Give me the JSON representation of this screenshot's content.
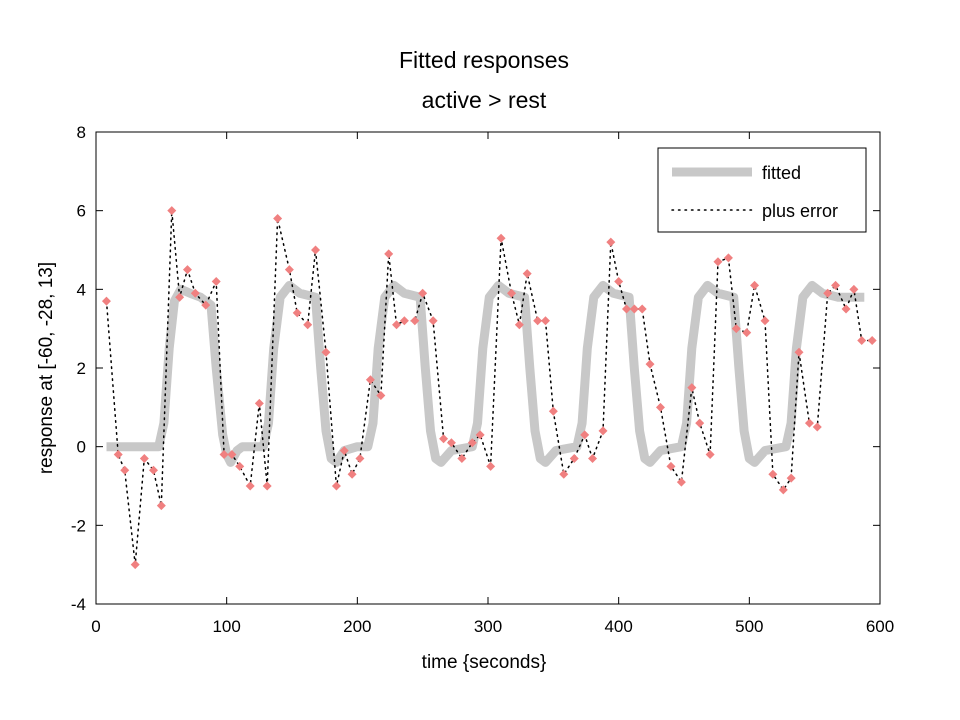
{
  "chart_data": {
    "type": "line",
    "title": "Fitted responses",
    "subtitle": "active > rest",
    "xlabel": "time {seconds}",
    "ylabel": "response at [-60, -28, 13]",
    "xlim": [
      0,
      600
    ],
    "ylim": [
      -4,
      8
    ],
    "xticks": [
      0,
      100,
      200,
      300,
      400,
      500,
      600
    ],
    "yticks": [
      -4,
      -2,
      0,
      2,
      4,
      6,
      8
    ],
    "grid": false,
    "legend_position": "top-right",
    "series": [
      {
        "name": "fitted",
        "style": "thick solid line",
        "color": "#c8c8c8",
        "x": [
          8,
          48,
          52,
          56,
          60,
          65,
          72,
          80,
          88,
          92,
          97,
          100,
          103,
          108,
          112,
          128,
          132,
          136,
          141,
          148,
          156,
          168,
          172,
          176,
          180,
          184,
          190,
          200,
          208,
          212,
          216,
          221,
          228,
          236,
          248,
          252,
          256,
          260,
          264,
          272,
          288,
          292,
          296,
          301,
          308,
          316,
          328,
          332,
          336,
          340,
          344,
          352,
          368,
          372,
          376,
          381,
          388,
          396,
          408,
          412,
          416,
          420,
          424,
          432,
          448,
          452,
          456,
          461,
          468,
          476,
          488,
          492,
          496,
          500,
          504,
          512,
          528,
          532,
          536,
          541,
          548,
          556,
          568,
          572,
          576,
          580,
          588
        ],
        "y": [
          0,
          0,
          0.6,
          2.5,
          3.7,
          4.0,
          3.9,
          3.8,
          3.6,
          2.0,
          0.3,
          -0.2,
          -0.4,
          -0.1,
          0,
          0,
          0.6,
          2.5,
          3.8,
          4.1,
          3.9,
          3.8,
          2.0,
          0.4,
          -0.3,
          -0.4,
          -0.1,
          0,
          0,
          0.6,
          2.5,
          3.8,
          4.1,
          3.9,
          3.8,
          2.0,
          0.4,
          -0.3,
          -0.4,
          -0.1,
          0,
          0.6,
          2.5,
          3.8,
          4.1,
          3.9,
          3.8,
          2.0,
          0.4,
          -0.3,
          -0.4,
          -0.1,
          0,
          0.6,
          2.5,
          3.8,
          4.1,
          3.9,
          3.8,
          2.0,
          0.4,
          -0.3,
          -0.4,
          -0.1,
          0,
          0.6,
          2.5,
          3.8,
          4.1,
          3.9,
          3.8,
          2.0,
          0.4,
          -0.3,
          -0.4,
          -0.1,
          0,
          0.6,
          2.5,
          3.8,
          4.1,
          3.9,
          3.8,
          3.8,
          3.8,
          3.8,
          3.8
        ]
      },
      {
        "name": "plus error",
        "style": "dotted line with markers",
        "color": "#000000",
        "marker_color": "#f08080",
        "x": [
          8,
          17,
          22,
          30,
          37,
          44,
          50,
          58,
          64,
          70,
          76,
          84,
          92,
          98,
          104,
          110,
          118,
          125,
          131,
          139,
          148,
          154,
          162,
          168,
          176,
          184,
          190,
          196,
          202,
          210,
          218,
          224,
          230,
          236,
          244,
          250,
          258,
          266,
          272,
          280,
          288,
          294,
          302,
          310,
          318,
          324,
          330,
          338,
          344,
          350,
          358,
          366,
          374,
          380,
          388,
          394,
          400,
          406,
          412,
          418,
          424,
          432,
          440,
          448,
          456,
          462,
          470,
          476,
          484,
          490,
          498,
          504,
          512,
          518,
          526,
          532,
          538,
          546,
          552,
          560,
          566,
          574,
          580,
          586,
          594
        ],
        "y": [
          3.7,
          -0.2,
          -0.6,
          -3.0,
          -0.3,
          -0.6,
          -1.5,
          6.0,
          3.8,
          4.5,
          3.9,
          3.6,
          4.2,
          -0.2,
          -0.2,
          -0.5,
          -1.0,
          1.1,
          -1.0,
          5.8,
          4.5,
          3.4,
          3.1,
          5.0,
          2.4,
          -1.0,
          -0.1,
          -0.7,
          -0.3,
          1.7,
          1.3,
          4.9,
          3.1,
          3.2,
          3.2,
          3.9,
          3.2,
          0.2,
          0.1,
          -0.3,
          0.1,
          0.3,
          -0.5,
          5.3,
          3.9,
          3.1,
          4.4,
          3.2,
          3.2,
          0.9,
          -0.7,
          -0.3,
          0.3,
          -0.3,
          0.4,
          5.2,
          4.2,
          3.5,
          3.5,
          3.5,
          2.1,
          1.0,
          -0.5,
          -0.9,
          1.5,
          0.6,
          -0.2,
          4.7,
          4.8,
          3.0,
          2.9,
          4.1,
          3.2,
          -0.7,
          -1.1,
          -0.8,
          2.4,
          0.6,
          0.5,
          3.9,
          4.1,
          3.5,
          4.0,
          2.7,
          2.7
        ]
      }
    ]
  }
}
